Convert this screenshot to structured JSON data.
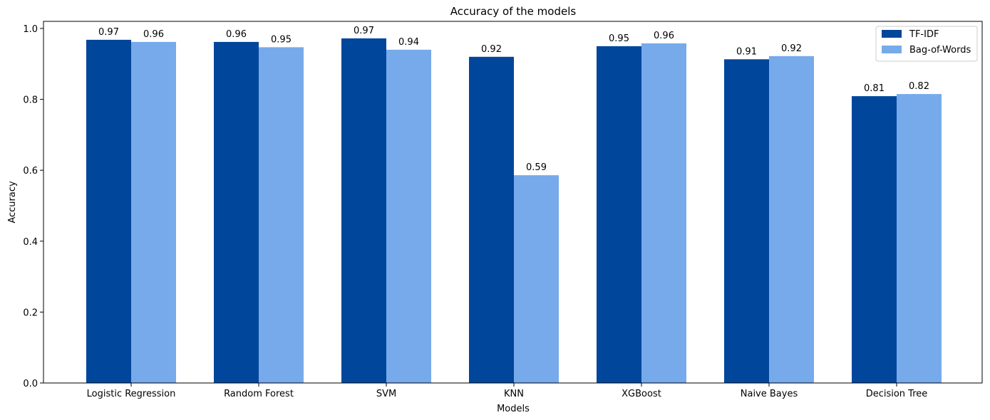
{
  "chart_data": {
    "type": "bar",
    "title": "Accuracy of the models",
    "xlabel": "Models",
    "ylabel": "Accuracy",
    "categories": [
      "Logistic Regression",
      "Random Forest",
      "SVM",
      "KNN",
      "XGBoost",
      "Naive Bayes",
      "Decision Tree"
    ],
    "series": [
      {
        "name": "TF-IDF",
        "color": "#00469b",
        "values": [
          0.968,
          0.962,
          0.972,
          0.92,
          0.95,
          0.913,
          0.809
        ],
        "labels": [
          "0.97",
          "0.96",
          "0.97",
          "0.92",
          "0.95",
          "0.91",
          "0.81"
        ]
      },
      {
        "name": "Bag-of-Words",
        "color": "#76aaeb",
        "values": [
          0.962,
          0.947,
          0.94,
          0.586,
          0.958,
          0.922,
          0.815
        ],
        "labels": [
          "0.96",
          "0.95",
          "0.94",
          "0.59",
          "0.96",
          "0.92",
          "0.82"
        ]
      }
    ],
    "ylim": [
      0,
      1.02
    ],
    "yticks": [
      0.0,
      0.2,
      0.4,
      0.6,
      0.8,
      1.0
    ],
    "ytick_labels": [
      "0.0",
      "0.2",
      "0.4",
      "0.6",
      "0.8",
      "1.0"
    ],
    "grid": false,
    "legend_position": "top-right"
  }
}
